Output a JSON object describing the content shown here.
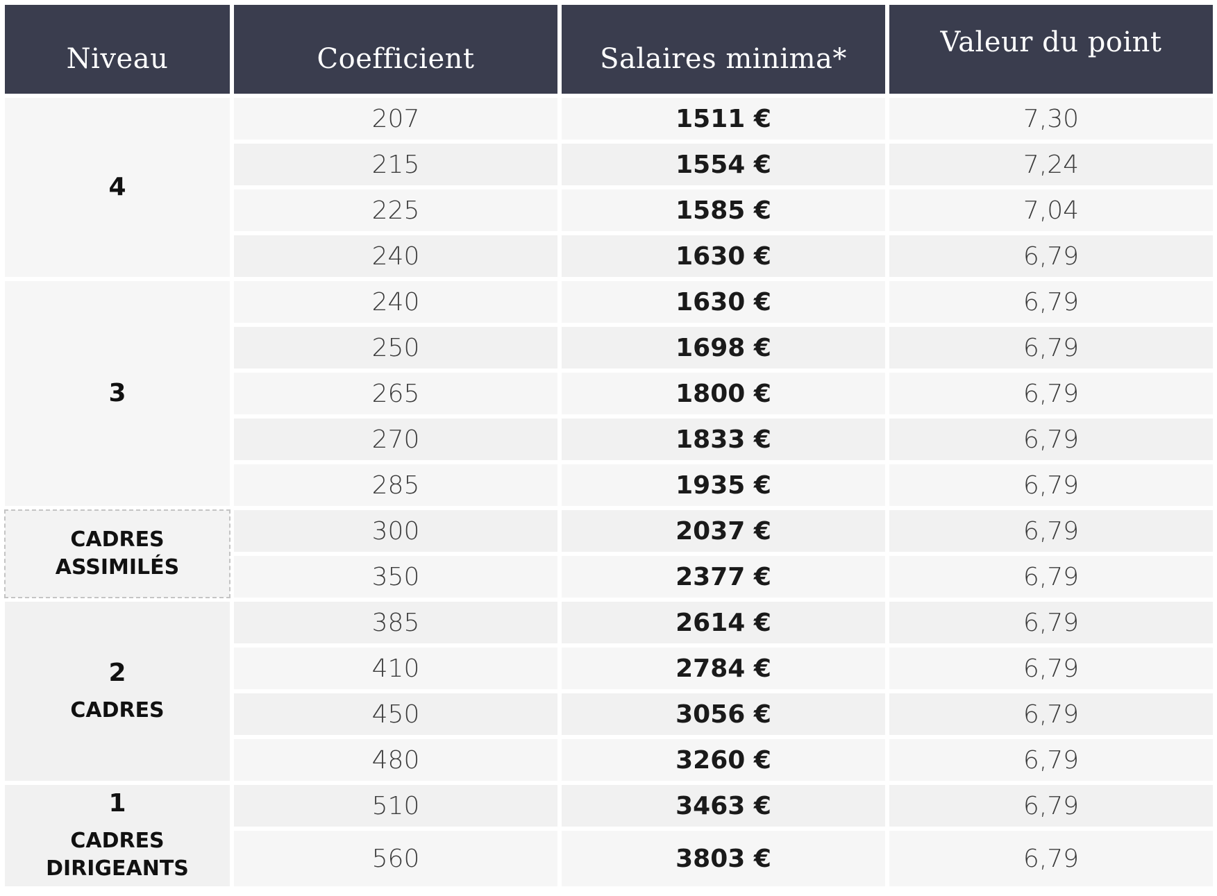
{
  "header": {
    "niveau": "Niveau",
    "coefficient": "Coefficient",
    "salaires": "Salaires minima*",
    "valeur": "Valeur du point"
  },
  "levels": {
    "l4": "4",
    "l3": "3",
    "cadres_assimiles_line1": "CADRES",
    "cadres_assimiles_line2": "ASSIMILÉS",
    "l2": "2",
    "l2_sub": "CADRES",
    "l1": "1",
    "l1_sub1": "CADRES",
    "l1_sub2": "DIRIGEANTS"
  },
  "rows": [
    {
      "coef": "207",
      "salary": "1511 €",
      "point": "7,30"
    },
    {
      "coef": "215",
      "salary": "1554 €",
      "point": "7,24"
    },
    {
      "coef": "225",
      "salary": "1585 €",
      "point": "7,04"
    },
    {
      "coef": "240",
      "salary": "1630 €",
      "point": "6,79"
    },
    {
      "coef": "240",
      "salary": "1630 €",
      "point": "6,79"
    },
    {
      "coef": "250",
      "salary": "1698 €",
      "point": "6,79"
    },
    {
      "coef": "265",
      "salary": "1800 €",
      "point": "6,79"
    },
    {
      "coef": "270",
      "salary": "1833 €",
      "point": "6,79"
    },
    {
      "coef": "285",
      "salary": "1935 €",
      "point": "6,79"
    },
    {
      "coef": "300",
      "salary": "2037 €",
      "point": "6,79"
    },
    {
      "coef": "350",
      "salary": "2377 €",
      "point": "6,79"
    },
    {
      "coef": "385",
      "salary": "2614 €",
      "point": "6,79"
    },
    {
      "coef": "410",
      "salary": "2784 €",
      "point": "6,79"
    },
    {
      "coef": "450",
      "salary": "3056 €",
      "point": "6,79"
    },
    {
      "coef": "480",
      "salary": "3260 €",
      "point": "6,79"
    },
    {
      "coef": "510",
      "salary": "3463 €",
      "point": "6,79"
    },
    {
      "coef": "560",
      "salary": "3803 €",
      "point": "6,79"
    }
  ]
}
